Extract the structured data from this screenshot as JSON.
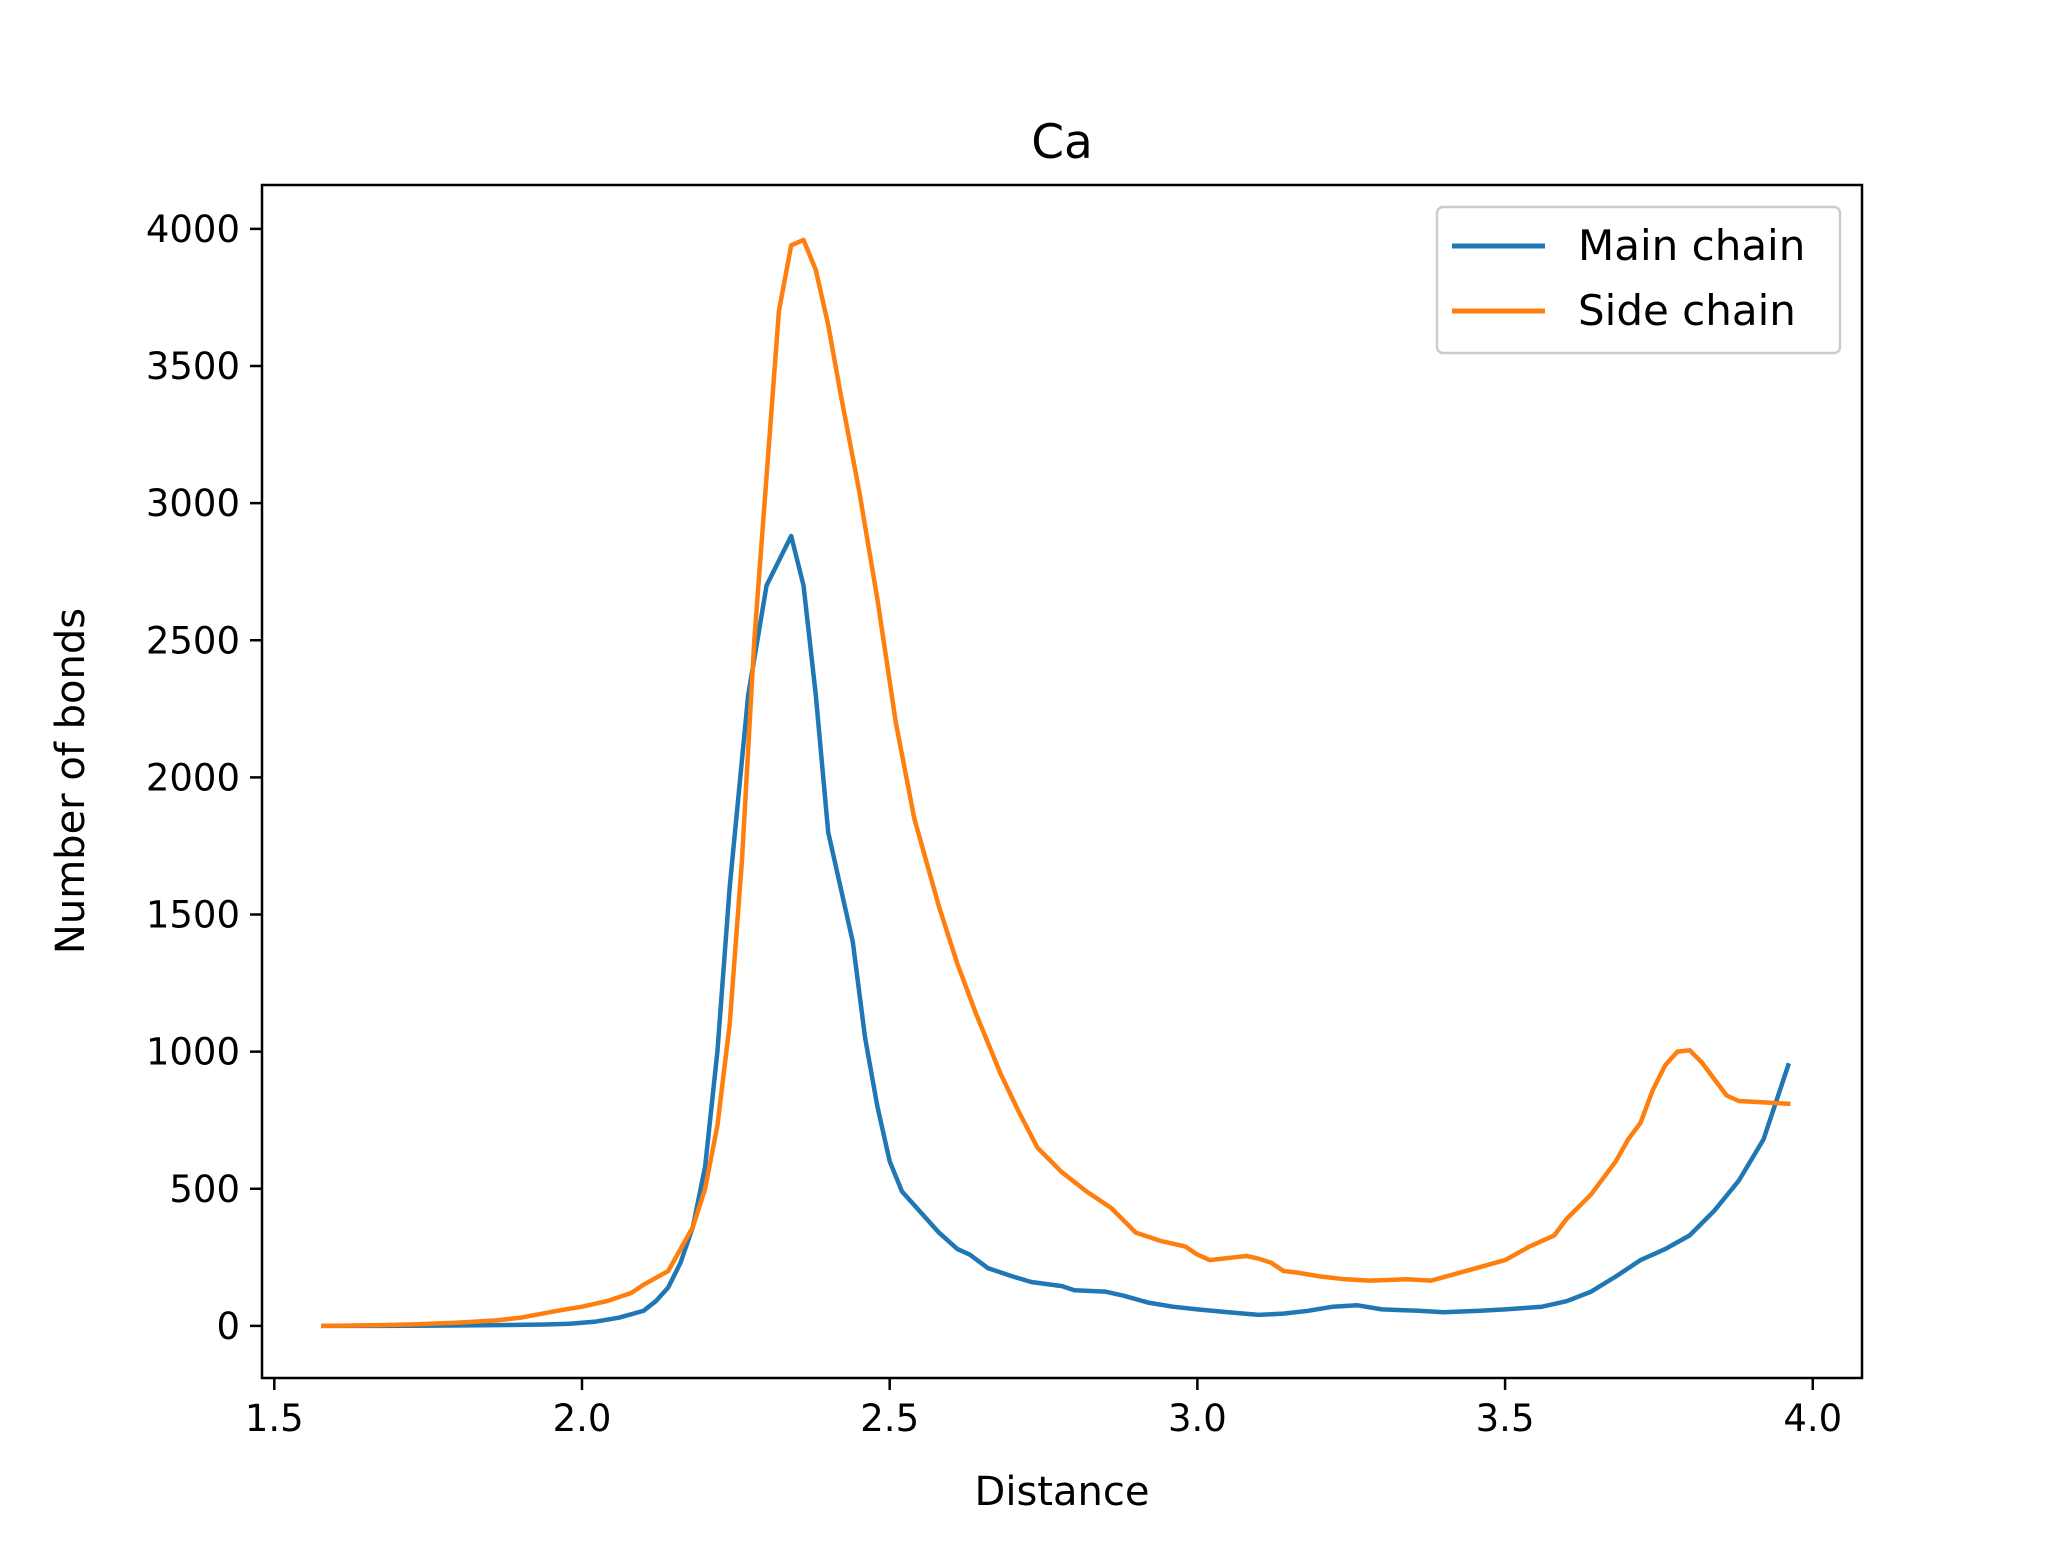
{
  "chart_data": {
    "type": "line",
    "title": "Ca",
    "xlabel": "Distance",
    "ylabel": "Number of bonds",
    "xlim": [
      1.48,
      4.08
    ],
    "ylim": [
      -190,
      4160
    ],
    "xticks": [
      1.5,
      2.0,
      2.5,
      3.0,
      3.5,
      4.0
    ],
    "xtick_labels": [
      "1.5",
      "2.0",
      "2.5",
      "3.0",
      "3.5",
      "4.0"
    ],
    "yticks": [
      0,
      500,
      1000,
      1500,
      2000,
      2500,
      3000,
      3500,
      4000
    ],
    "ytick_labels": [
      "0",
      "500",
      "1000",
      "1500",
      "2000",
      "2500",
      "3000",
      "3500",
      "4000"
    ],
    "grid": false,
    "legend_position": "top-right",
    "colors": {
      "main": "#1f77b4",
      "side": "#ff7f0e"
    },
    "series": [
      {
        "name": "Main chain",
        "points": [
          [
            1.58,
            0
          ],
          [
            1.66,
            0
          ],
          [
            1.76,
            1
          ],
          [
            1.86,
            3
          ],
          [
            1.94,
            5
          ],
          [
            1.98,
            8
          ],
          [
            2.02,
            15
          ],
          [
            2.06,
            30
          ],
          [
            2.1,
            55
          ],
          [
            2.12,
            90
          ],
          [
            2.14,
            140
          ],
          [
            2.16,
            230
          ],
          [
            2.18,
            360
          ],
          [
            2.2,
            580
          ],
          [
            2.22,
            1000
          ],
          [
            2.24,
            1600
          ],
          [
            2.27,
            2300
          ],
          [
            2.3,
            2700
          ],
          [
            2.34,
            2880
          ],
          [
            2.36,
            2700
          ],
          [
            2.38,
            2300
          ],
          [
            2.4,
            1800
          ],
          [
            2.44,
            1400
          ],
          [
            2.46,
            1050
          ],
          [
            2.48,
            800
          ],
          [
            2.5,
            600
          ],
          [
            2.52,
            490
          ],
          [
            2.56,
            390
          ],
          [
            2.58,
            340
          ],
          [
            2.61,
            280
          ],
          [
            2.63,
            260
          ],
          [
            2.66,
            210
          ],
          [
            2.7,
            180
          ],
          [
            2.73,
            160
          ],
          [
            2.78,
            145
          ],
          [
            2.8,
            130
          ],
          [
            2.85,
            125
          ],
          [
            2.88,
            110
          ],
          [
            2.92,
            85
          ],
          [
            2.96,
            70
          ],
          [
            3.0,
            60
          ],
          [
            3.05,
            50
          ],
          [
            3.1,
            40
          ],
          [
            3.14,
            45
          ],
          [
            3.18,
            55
          ],
          [
            3.22,
            70
          ],
          [
            3.26,
            75
          ],
          [
            3.3,
            60
          ],
          [
            3.36,
            55
          ],
          [
            3.4,
            50
          ],
          [
            3.46,
            55
          ],
          [
            3.5,
            60
          ],
          [
            3.56,
            70
          ],
          [
            3.6,
            90
          ],
          [
            3.64,
            125
          ],
          [
            3.68,
            180
          ],
          [
            3.72,
            240
          ],
          [
            3.76,
            280
          ],
          [
            3.8,
            330
          ],
          [
            3.84,
            420
          ],
          [
            3.88,
            530
          ],
          [
            3.92,
            680
          ],
          [
            3.96,
            950
          ]
        ]
      },
      {
        "name": "Side chain",
        "points": [
          [
            1.58,
            0
          ],
          [
            1.66,
            2
          ],
          [
            1.72,
            5
          ],
          [
            1.8,
            12
          ],
          [
            1.86,
            20
          ],
          [
            1.9,
            30
          ],
          [
            1.96,
            55
          ],
          [
            2.0,
            70
          ],
          [
            2.04,
            90
          ],
          [
            2.08,
            120
          ],
          [
            2.1,
            150
          ],
          [
            2.14,
            200
          ],
          [
            2.16,
            280
          ],
          [
            2.18,
            360
          ],
          [
            2.2,
            500
          ],
          [
            2.22,
            730
          ],
          [
            2.24,
            1100
          ],
          [
            2.26,
            1700
          ],
          [
            2.28,
            2500
          ],
          [
            2.3,
            3100
          ],
          [
            2.32,
            3700
          ],
          [
            2.34,
            3940
          ],
          [
            2.36,
            3960
          ],
          [
            2.38,
            3850
          ],
          [
            2.4,
            3650
          ],
          [
            2.42,
            3400
          ],
          [
            2.45,
            3050
          ],
          [
            2.48,
            2650
          ],
          [
            2.51,
            2200
          ],
          [
            2.54,
            1850
          ],
          [
            2.58,
            1530
          ],
          [
            2.61,
            1320
          ],
          [
            2.64,
            1140
          ],
          [
            2.68,
            920
          ],
          [
            2.71,
            780
          ],
          [
            2.74,
            650
          ],
          [
            2.78,
            560
          ],
          [
            2.82,
            490
          ],
          [
            2.86,
            430
          ],
          [
            2.9,
            340
          ],
          [
            2.94,
            310
          ],
          [
            2.98,
            290
          ],
          [
            3.0,
            260
          ],
          [
            3.02,
            240
          ],
          [
            3.06,
            250
          ],
          [
            3.08,
            255
          ],
          [
            3.1,
            245
          ],
          [
            3.12,
            230
          ],
          [
            3.14,
            200
          ],
          [
            3.16,
            195
          ],
          [
            3.2,
            180
          ],
          [
            3.24,
            170
          ],
          [
            3.28,
            165
          ],
          [
            3.34,
            170
          ],
          [
            3.38,
            165
          ],
          [
            3.42,
            190
          ],
          [
            3.46,
            215
          ],
          [
            3.5,
            240
          ],
          [
            3.54,
            290
          ],
          [
            3.58,
            330
          ],
          [
            3.6,
            390
          ],
          [
            3.64,
            480
          ],
          [
            3.68,
            600
          ],
          [
            3.7,
            680
          ],
          [
            3.72,
            740
          ],
          [
            3.74,
            860
          ],
          [
            3.76,
            950
          ],
          [
            3.78,
            1000
          ],
          [
            3.8,
            1005
          ],
          [
            3.82,
            960
          ],
          [
            3.84,
            900
          ],
          [
            3.86,
            840
          ],
          [
            3.88,
            820
          ],
          [
            3.92,
            815
          ],
          [
            3.96,
            810
          ]
        ]
      }
    ]
  }
}
